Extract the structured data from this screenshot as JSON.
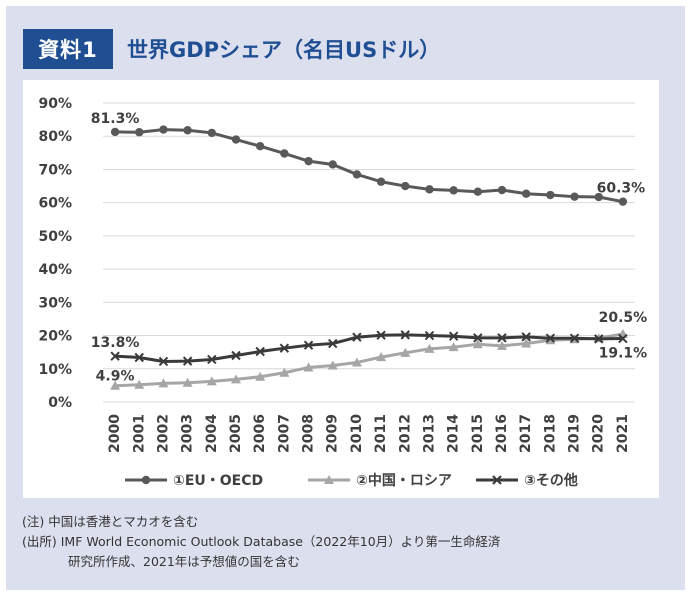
{
  "badge": "資料1",
  "title": "世界GDPシェア（名目USドル）",
  "notes": {
    "note": "(注) 中国は香港とマカオを含む",
    "source_line1": "(出所) IMF World Economic Outlook Database（2022年10月）より第一生命経済",
    "source_line2": "研究所作成、2021年は予想値の国を含む"
  },
  "chart_data": {
    "type": "line",
    "x": [
      "2000",
      "2001",
      "2002",
      "2003",
      "2004",
      "2005",
      "2006",
      "2007",
      "2008",
      "2009",
      "2010",
      "2011",
      "2012",
      "2013",
      "2014",
      "2015",
      "2016",
      "2017",
      "2018",
      "2019",
      "2020",
      "2021"
    ],
    "ylim": [
      0,
      90
    ],
    "ytick_labels": [
      "0%",
      "10%",
      "20%",
      "30%",
      "40%",
      "50%",
      "60%",
      "70%",
      "80%",
      "90%"
    ],
    "legend_position": "bottom",
    "series": [
      {
        "name": "①EU・OECD",
        "color": "#595959",
        "marker": "circle",
        "values": [
          81.3,
          81.2,
          82.0,
          81.8,
          81.0,
          79.0,
          77.0,
          74.8,
          72.5,
          71.5,
          68.5,
          66.3,
          65.0,
          64.0,
          63.7,
          63.3,
          63.8,
          62.7,
          62.3,
          61.8,
          61.7,
          60.3
        ]
      },
      {
        "name": "②中国・ロシア",
        "color": "#a6a6a6",
        "marker": "triangle",
        "values": [
          4.9,
          5.2,
          5.6,
          5.8,
          6.2,
          6.8,
          7.6,
          8.8,
          10.4,
          11.0,
          11.9,
          13.5,
          14.8,
          16.0,
          16.5,
          17.4,
          16.9,
          17.6,
          18.6,
          18.9,
          19.2,
          20.5
        ]
      },
      {
        "name": "③その他",
        "color": "#3a3a3a",
        "marker": "x",
        "values": [
          13.8,
          13.4,
          12.2,
          12.3,
          12.8,
          14.0,
          15.2,
          16.2,
          17.1,
          17.6,
          19.5,
          20.1,
          20.2,
          20.0,
          19.8,
          19.3,
          19.3,
          19.6,
          19.2,
          19.2,
          19.0,
          19.1
        ]
      }
    ],
    "data_labels": [
      {
        "series": 0,
        "index": 0,
        "text": "81.3%"
      },
      {
        "series": 0,
        "index": 21,
        "text": "60.3%"
      },
      {
        "series": 1,
        "index": 0,
        "text": "4.9%"
      },
      {
        "series": 1,
        "index": 21,
        "text": "20.5%"
      },
      {
        "series": 2,
        "index": 0,
        "text": "13.8%"
      },
      {
        "series": 2,
        "index": 21,
        "text": "19.1%"
      }
    ]
  }
}
